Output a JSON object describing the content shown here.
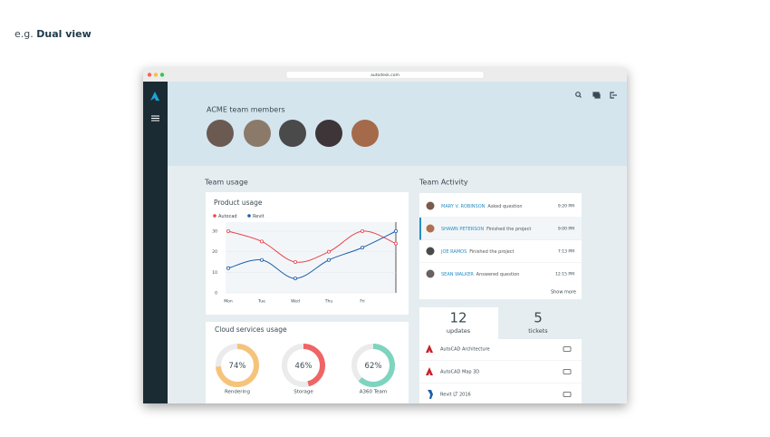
{
  "intro": {
    "prefix": "e.g.",
    "emphasis": "Dual view"
  },
  "browser": {
    "url": "autodesk.com"
  },
  "header": {
    "title": "ACME team members"
  },
  "team_usage": {
    "title": "Team usage"
  },
  "chart_data": {
    "type": "line",
    "title": "Product usage",
    "categories": [
      "Mon",
      "Tue",
      "Wed",
      "Thu",
      "Fri",
      null
    ],
    "series": [
      {
        "name": "Autocad",
        "color": "#e8474c",
        "values": [
          30,
          25,
          15,
          20,
          30,
          24
        ]
      },
      {
        "name": "Revit",
        "color": "#1f5fa8",
        "values": [
          12,
          16,
          7,
          16,
          22,
          30
        ]
      }
    ],
    "ylim": [
      0,
      30
    ],
    "yticks": [
      0,
      10,
      20,
      30
    ],
    "grid": true
  },
  "cloud": {
    "title": "Cloud services usage",
    "gauges": [
      {
        "name": "Rendering",
        "value": 74,
        "value_label": "74%",
        "color": "#f6c37a"
      },
      {
        "name": "Storage",
        "value": 46,
        "value_label": "46%",
        "color": "#ef6565"
      },
      {
        "name": "A360 Team",
        "value": 62,
        "value_label": "62%",
        "color": "#7dd4bf"
      }
    ]
  },
  "activity": {
    "title": "Team Activity",
    "items": [
      {
        "name": "MARY V. ROBINSON",
        "action": "Asked question",
        "time": "9:20 PM"
      },
      {
        "name": "SHAWN PETERSON",
        "action": "Finished the project",
        "time": "9:00 PM"
      },
      {
        "name": "JOE RAMOS",
        "action": "Finished the project",
        "time": "7:13 PM"
      },
      {
        "name": "SEAN WALKER",
        "action": "Answered question",
        "time": "12:15 PM"
      }
    ],
    "more": "Show more"
  },
  "tabs": [
    {
      "count": 12,
      "label": "updates"
    },
    {
      "count": 5,
      "label": "tickets"
    }
  ],
  "products": [
    "AutoCAD Architecture",
    "AutoCAD Map 3D",
    "Revit LT 2016"
  ]
}
